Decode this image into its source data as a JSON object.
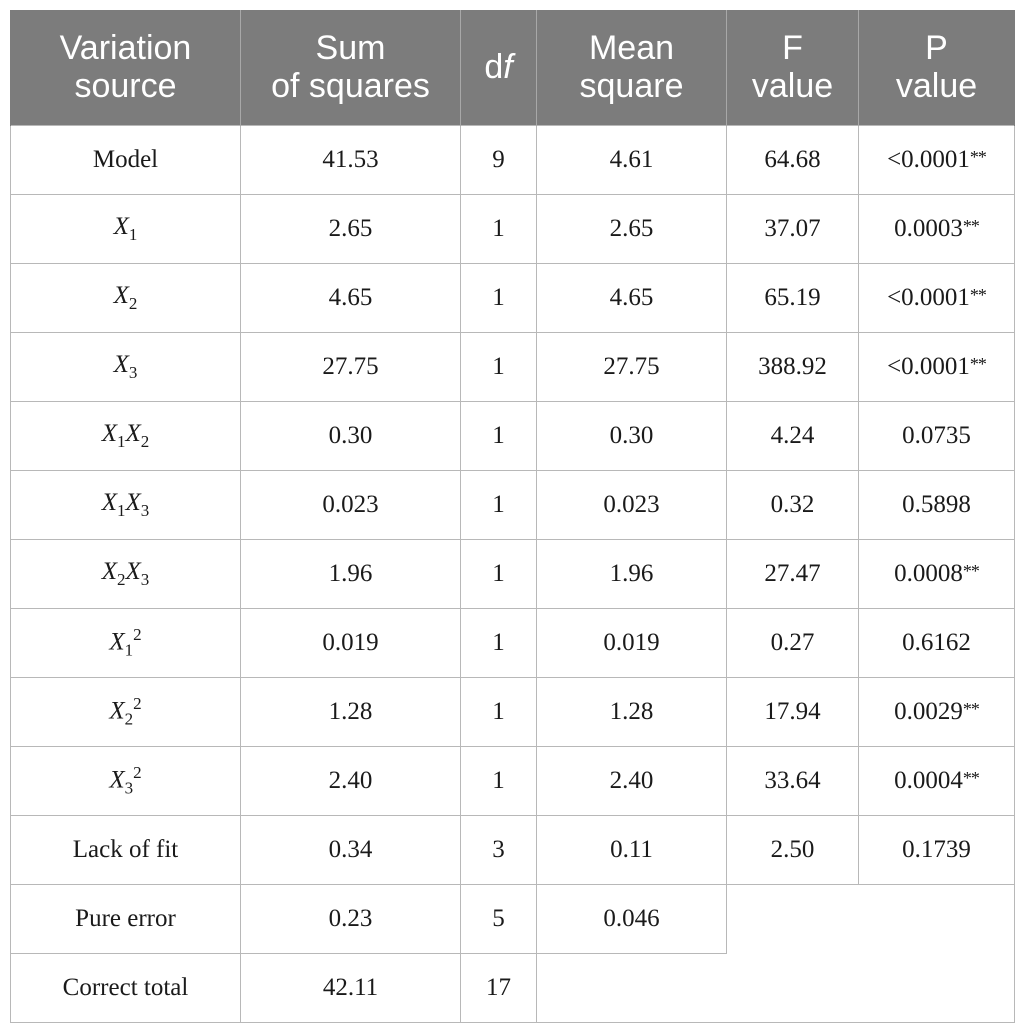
{
  "table": {
    "headers": [
      [
        "Variation",
        "source"
      ],
      [
        "Sum",
        "of squares"
      ],
      [
        "d",
        "f"
      ],
      [
        "Mean",
        "square"
      ],
      [
        "F",
        "value"
      ],
      [
        "P",
        "value"
      ]
    ],
    "rows": [
      {
        "source": "Model",
        "ss": "41.53",
        "df": "9",
        "ms": "4.61",
        "f": "64.68",
        "p": "<0.0001",
        "sig": "**"
      },
      {
        "source": "X1",
        "ss": "2.65",
        "df": "1",
        "ms": "2.65",
        "f": "37.07",
        "p": "0.0003",
        "sig": "**"
      },
      {
        "source": "X2",
        "ss": "4.65",
        "df": "1",
        "ms": "4.65",
        "f": "65.19",
        "p": "<0.0001",
        "sig": "**"
      },
      {
        "source": "X3",
        "ss": "27.75",
        "df": "1",
        "ms": "27.75",
        "f": "388.92",
        "p": "<0.0001",
        "sig": "**"
      },
      {
        "source": "X1X2",
        "ss": "0.30",
        "df": "1",
        "ms": "0.30",
        "f": "4.24",
        "p": "0.0735",
        "sig": ""
      },
      {
        "source": "X1X3",
        "ss": "0.023",
        "df": "1",
        "ms": "0.023",
        "f": "0.32",
        "p": "0.5898",
        "sig": ""
      },
      {
        "source": "X2X3",
        "ss": "1.96",
        "df": "1",
        "ms": "1.96",
        "f": "27.47",
        "p": "0.0008",
        "sig": "**"
      },
      {
        "source": "X1^2",
        "ss": "0.019",
        "df": "1",
        "ms": "0.019",
        "f": "0.27",
        "p": "0.6162",
        "sig": ""
      },
      {
        "source": "X2^2",
        "ss": "1.28",
        "df": "1",
        "ms": "1.28",
        "f": "17.94",
        "p": "0.0029",
        "sig": "**"
      },
      {
        "source": "X3^2",
        "ss": "2.40",
        "df": "1",
        "ms": "2.40",
        "f": "33.64",
        "p": "0.0004",
        "sig": "**"
      },
      {
        "source": "Lack of fit",
        "ss": "0.34",
        "df": "3",
        "ms": "0.11",
        "f": "2.50",
        "p": "0.1739",
        "sig": ""
      },
      {
        "source": "Pure error",
        "ss": "0.23",
        "df": "5",
        "ms": "0.046",
        "f": "",
        "p": "",
        "sig": ""
      },
      {
        "source": "Correct total",
        "ss": "42.11",
        "df": "17",
        "ms": "",
        "f": "",
        "p": "",
        "sig": ""
      }
    ]
  },
  "colors": {
    "header_bg": "#7c7c7c",
    "header_text": "#ffffff",
    "grid": "#b8b8b8"
  }
}
